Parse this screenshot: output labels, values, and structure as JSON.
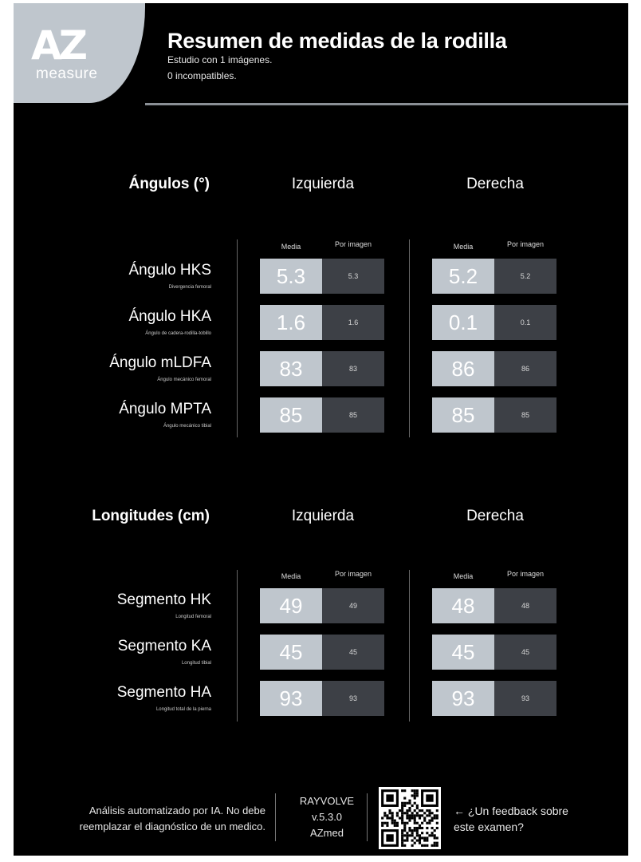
{
  "header": {
    "logo_mark": "AZ",
    "logo_sub": "measure",
    "title": "Resumen de medidas de la rodilla",
    "study_line": "Estudio con 1 imágenes.",
    "incompat_line": "0 incompatibles."
  },
  "columns": {
    "left": "Izquierda",
    "right": "Derecha",
    "media": "Media",
    "per_image": "Por imagen"
  },
  "angles": {
    "title": "Ángulos (°)",
    "rows": [
      {
        "name": "Ángulo HKS",
        "sub": "Divergencia femoral",
        "left_media": "5.3",
        "left_img": "5.3",
        "right_media": "5.2",
        "right_img": "5.2"
      },
      {
        "name": "Ángulo HKA",
        "sub": "Ángulo de cadera-rodilla-tobillo",
        "left_media": "1.6",
        "left_img": "1.6",
        "right_media": "0.1",
        "right_img": "0.1"
      },
      {
        "name": "Ángulo mLDFA",
        "sub": "Ángulo mecánico femoral",
        "left_media": "83",
        "left_img": "83",
        "right_media": "86",
        "right_img": "86"
      },
      {
        "name": "Ángulo MPTA",
        "sub": "Ángulo mecánico tibial",
        "left_media": "85",
        "left_img": "85",
        "right_media": "85",
        "right_img": "85"
      }
    ]
  },
  "lengths": {
    "title": "Longitudes (cm)",
    "rows": [
      {
        "name": "Segmento HK",
        "sub": "Longitud femoral",
        "left_media": "49",
        "left_img": "49",
        "right_media": "48",
        "right_img": "48"
      },
      {
        "name": "Segmento KA",
        "sub": "Longitud tibial",
        "left_media": "45",
        "left_img": "45",
        "right_media": "45",
        "right_img": "45"
      },
      {
        "name": "Segmento HA",
        "sub": "Longitud total de la pierna",
        "left_media": "93",
        "left_img": "93",
        "right_media": "93",
        "right_img": "93"
      }
    ]
  },
  "footer": {
    "disclaimer_1": "Análisis automatizado por IA. No debe",
    "disclaimer_2": "reemplazar el diagnóstico de un medico.",
    "product": "RAYVOLVE",
    "version": "v.5.3.0",
    "company": "AZmed",
    "feedback_1": "← ¿Un feedback sobre",
    "feedback_2": "este examen?"
  },
  "colors": {
    "background": "#000000",
    "accent": "#bfc6cd",
    "cell_dark": "#3d4046",
    "frame": "#ffffff"
  }
}
